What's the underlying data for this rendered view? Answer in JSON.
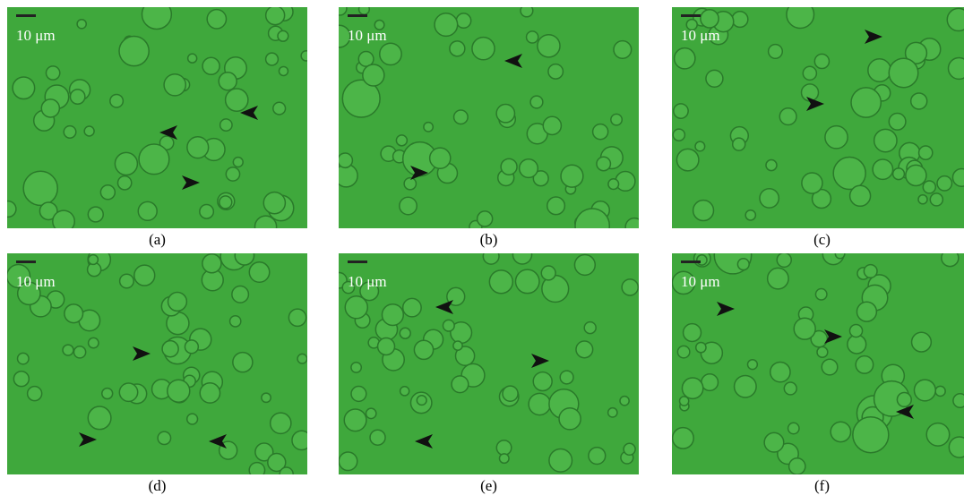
{
  "panels": [
    {
      "label": "(a)",
      "scale": "10 μm"
    },
    {
      "label": "(b)",
      "scale": "10 μm"
    },
    {
      "label": "(c)",
      "scale": "10 μm"
    },
    {
      "label": "(d)",
      "scale": "10 μm"
    },
    {
      "label": "(e)",
      "scale": "10 μm"
    },
    {
      "label": "(f)",
      "scale": "10 μm"
    }
  ]
}
